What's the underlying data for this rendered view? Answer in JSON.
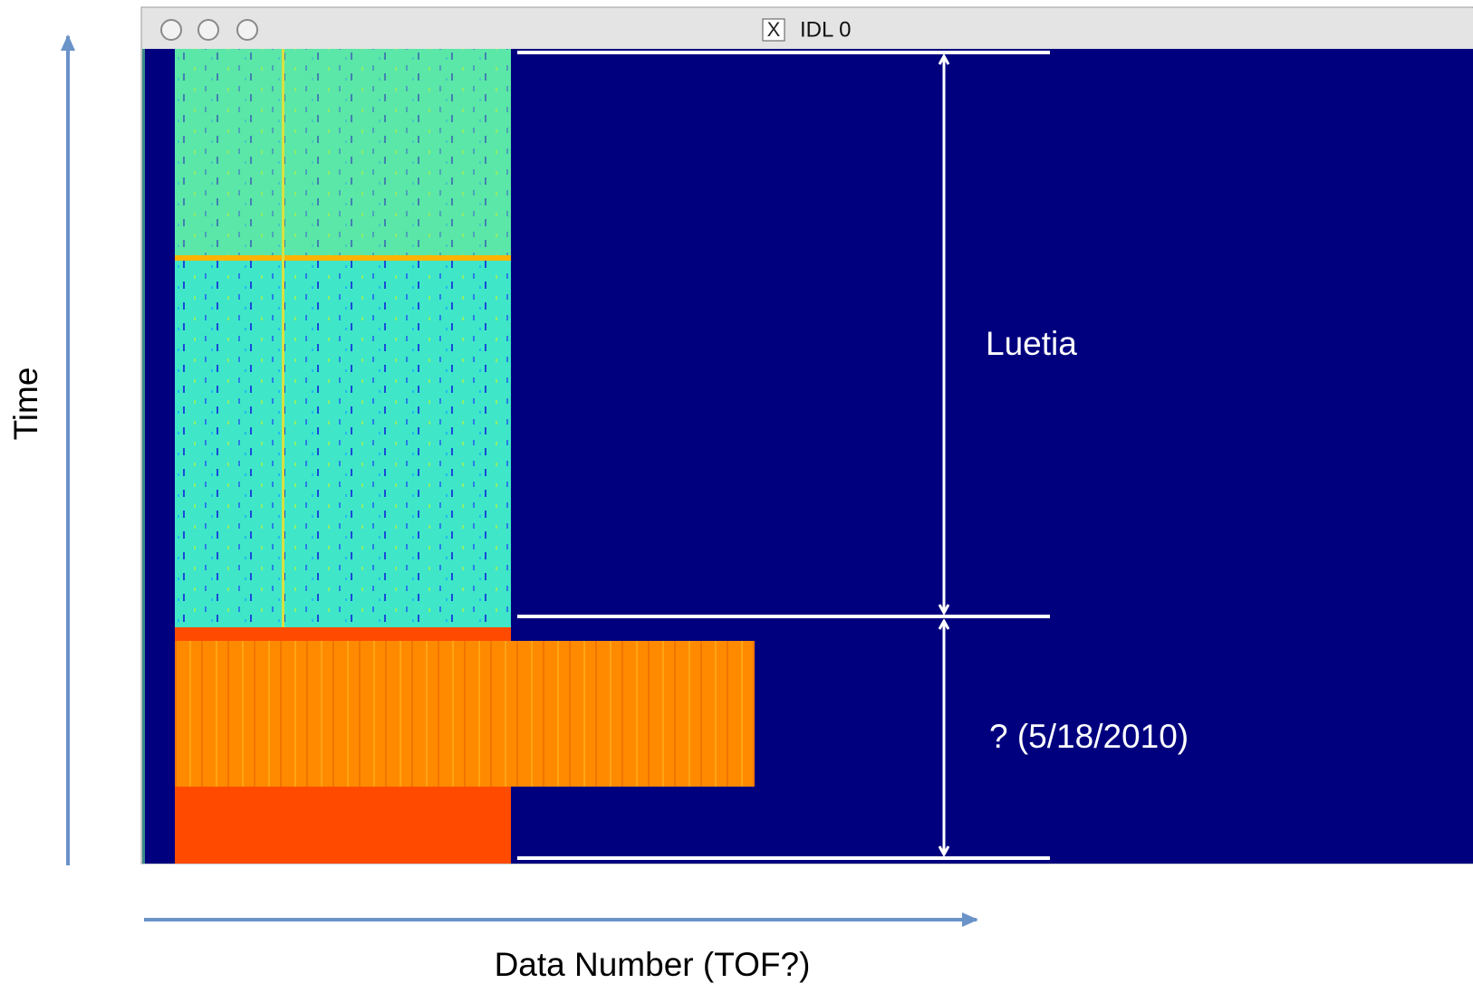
{
  "window": {
    "icon": "X",
    "title": "IDL 0"
  },
  "annotations": {
    "y_axis": "Time",
    "x_axis": "Data Number (TOF?)",
    "upper_region": "Luetia",
    "lower_region": "? (5/18/2010)"
  }
}
